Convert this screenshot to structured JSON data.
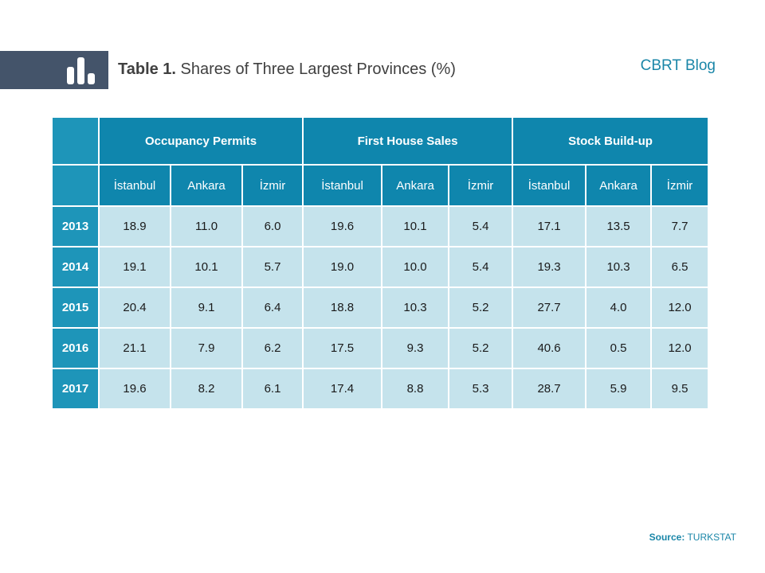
{
  "header": {
    "title_prefix": "Table 1.",
    "title_text": " Shares of Three Largest Provinces (%)",
    "blog_label": "CBRT Blog",
    "logo_icon": "bar-chart-icon"
  },
  "table": {
    "groups": [
      "Occupancy Permits",
      "First House Sales",
      "Stock Build-up"
    ],
    "subheaders": [
      "İstanbul",
      "Ankara",
      "İzmir",
      "İstanbul",
      "Ankara",
      "İzmir",
      "İstanbul",
      "Ankara",
      "İzmir"
    ],
    "rows": [
      {
        "year": "2013",
        "values": [
          "18.9",
          "11.0",
          "6.0",
          "19.6",
          "10.1",
          "5.4",
          "17.1",
          "13.5",
          "7.7"
        ]
      },
      {
        "year": "2014",
        "values": [
          "19.1",
          "10.1",
          "5.7",
          "19.0",
          "10.0",
          "5.4",
          "19.3",
          "10.3",
          "6.5"
        ]
      },
      {
        "year": "2015",
        "values": [
          "20.4",
          "9.1",
          "6.4",
          "18.8",
          "10.3",
          "5.2",
          "27.7",
          "4.0",
          "12.0"
        ]
      },
      {
        "year": "2016",
        "values": [
          "21.1",
          "7.9",
          "6.2",
          "17.5",
          "9.3",
          "5.2",
          "40.6",
          "0.5",
          "12.0"
        ]
      },
      {
        "year": "2017",
        "values": [
          "19.6",
          "8.2",
          "6.1",
          "17.4",
          "8.8",
          "5.3",
          "28.7",
          "5.9",
          "9.5"
        ]
      }
    ]
  },
  "footer": {
    "source_label": "Source:",
    "source_value": " TURKSTAT"
  },
  "colors": {
    "header_band": "#44546a",
    "table_header": "#0f86ad",
    "year_cell": "#1e95b9",
    "body_cell": "#c5e3ec",
    "accent_text": "#1a86a8"
  }
}
